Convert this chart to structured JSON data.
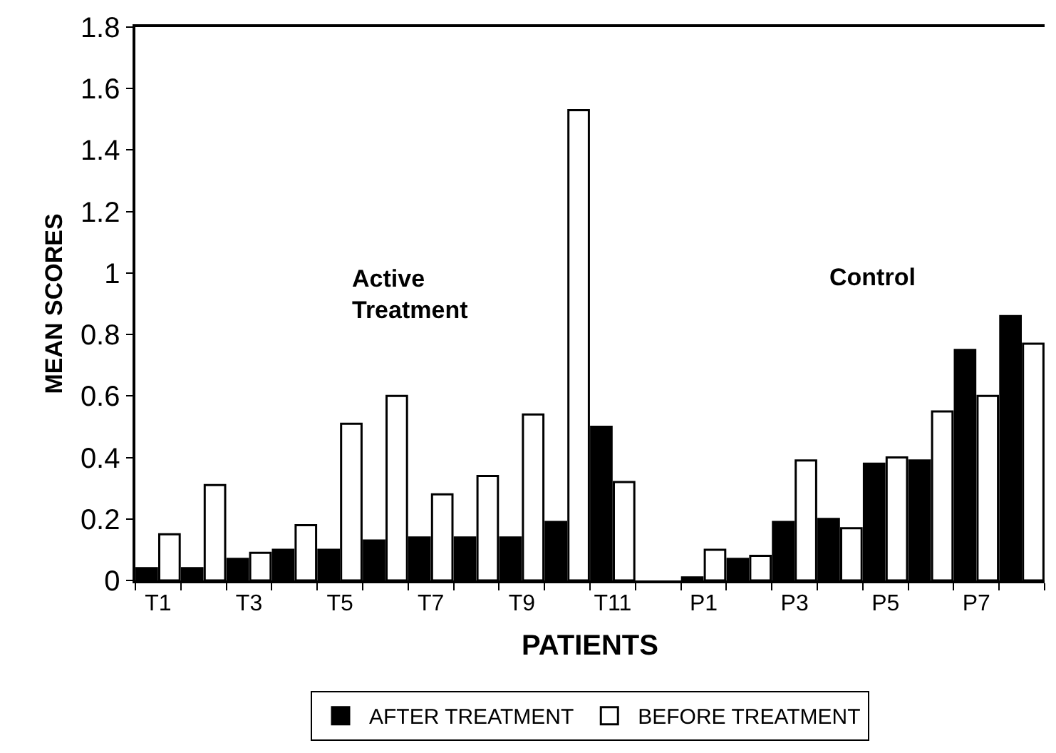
{
  "chart_data": {
    "type": "bar",
    "xlabel": "PATIENTS",
    "ylabel": "MEAN SCORES",
    "categories": [
      "T1",
      null,
      "T3",
      null,
      "T5",
      null,
      "T7",
      null,
      "T9",
      null,
      "T11",
      null,
      "P1",
      null,
      "P3",
      null,
      "P5",
      null,
      "P7",
      null
    ],
    "series": [
      {
        "name": "AFTER TREATMENT",
        "color": "#000000",
        "values": [
          0.04,
          0.04,
          0.07,
          0.1,
          0.1,
          0.13,
          0.14,
          0.14,
          0.14,
          0.19,
          0.5,
          null,
          0.01,
          0.07,
          0.19,
          0.2,
          0.38,
          0.39,
          0.75,
          0.86
        ]
      },
      {
        "name": "BEFORE TREATMENT",
        "color": "#ffffff",
        "values": [
          0.15,
          0.31,
          0.09,
          0.18,
          0.51,
          0.6,
          0.28,
          0.34,
          0.54,
          1.53,
          0.32,
          null,
          0.1,
          0.08,
          0.39,
          0.17,
          0.4,
          0.55,
          0.6,
          0.77
        ]
      }
    ],
    "annotations": [
      "Active\nTreatment",
      "Control"
    ],
    "ylim": [
      0,
      1.8
    ],
    "yticks": [
      0,
      0.2,
      0.4,
      0.6,
      0.8,
      1,
      1.2,
      1.4,
      1.6,
      1.8
    ],
    "legend": "bottom"
  }
}
